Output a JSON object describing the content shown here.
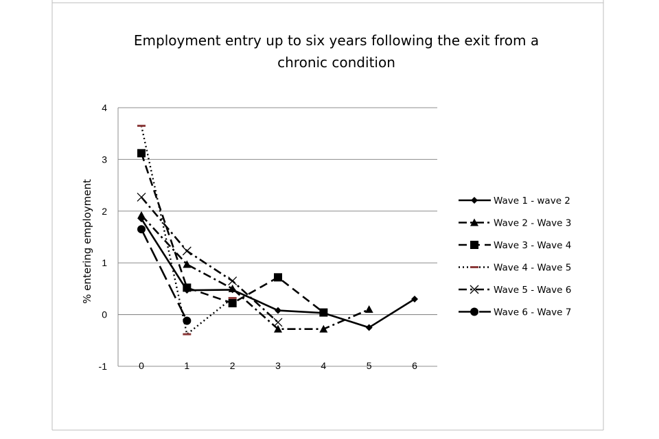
{
  "chart_data": {
    "type": "line",
    "title_line1": "Employment entry up to six years following the exit from a",
    "title_line2": "chronic condition",
    "xlabel": "",
    "ylabel": "% entering employment",
    "x": [
      0,
      1,
      2,
      3,
      4,
      5,
      6
    ],
    "xlim": [
      0,
      6
    ],
    "ylim": [
      -1,
      4
    ],
    "yticks": [
      -1,
      0,
      1,
      2,
      3,
      4
    ],
    "grid": "horizontal",
    "legend_position": "right",
    "series": [
      {
        "name": "Wave 1 - wave 2",
        "x": [
          0,
          1,
          2,
          3,
          4,
          5,
          6
        ],
        "values": [
          1.85,
          0.47,
          0.48,
          0.08,
          0.03,
          -0.25,
          0.3
        ],
        "marker": "diamond",
        "dash": "solid",
        "color": "#000000"
      },
      {
        "name": "Wave 2 - Wave 3",
        "x": [
          0,
          1,
          2,
          3,
          4,
          5
        ],
        "values": [
          1.92,
          0.97,
          0.5,
          -0.28,
          -0.28,
          0.1
        ],
        "marker": "triangle",
        "dash": "dashdot",
        "color": "#000000"
      },
      {
        "name": "Wave 3 - Wave 4",
        "x": [
          0,
          1,
          2,
          3,
          4
        ],
        "values": [
          3.12,
          0.52,
          0.22,
          0.72,
          0.04
        ],
        "marker": "square",
        "dash": "dash",
        "color": "#000000"
      },
      {
        "name": "Wave 4 - Wave 5",
        "x": [
          0,
          1,
          2
        ],
        "values": [
          3.65,
          -0.38,
          0.32
        ],
        "marker": "dash",
        "dash": "dot",
        "color": "#000000",
        "marker_color": "#8B3A3A"
      },
      {
        "name": "Wave 5 - Wave 6",
        "x": [
          0,
          1,
          2,
          3
        ],
        "values": [
          2.27,
          1.23,
          0.65,
          -0.15
        ],
        "marker": "x",
        "dash": "dashdot",
        "color": "#000000"
      },
      {
        "name": "Wave 6 - Wave 7",
        "x": [
          0,
          1
        ],
        "values": [
          1.65,
          -0.12
        ],
        "marker": "circle",
        "dash": "longdash",
        "color": "#000000"
      }
    ]
  }
}
